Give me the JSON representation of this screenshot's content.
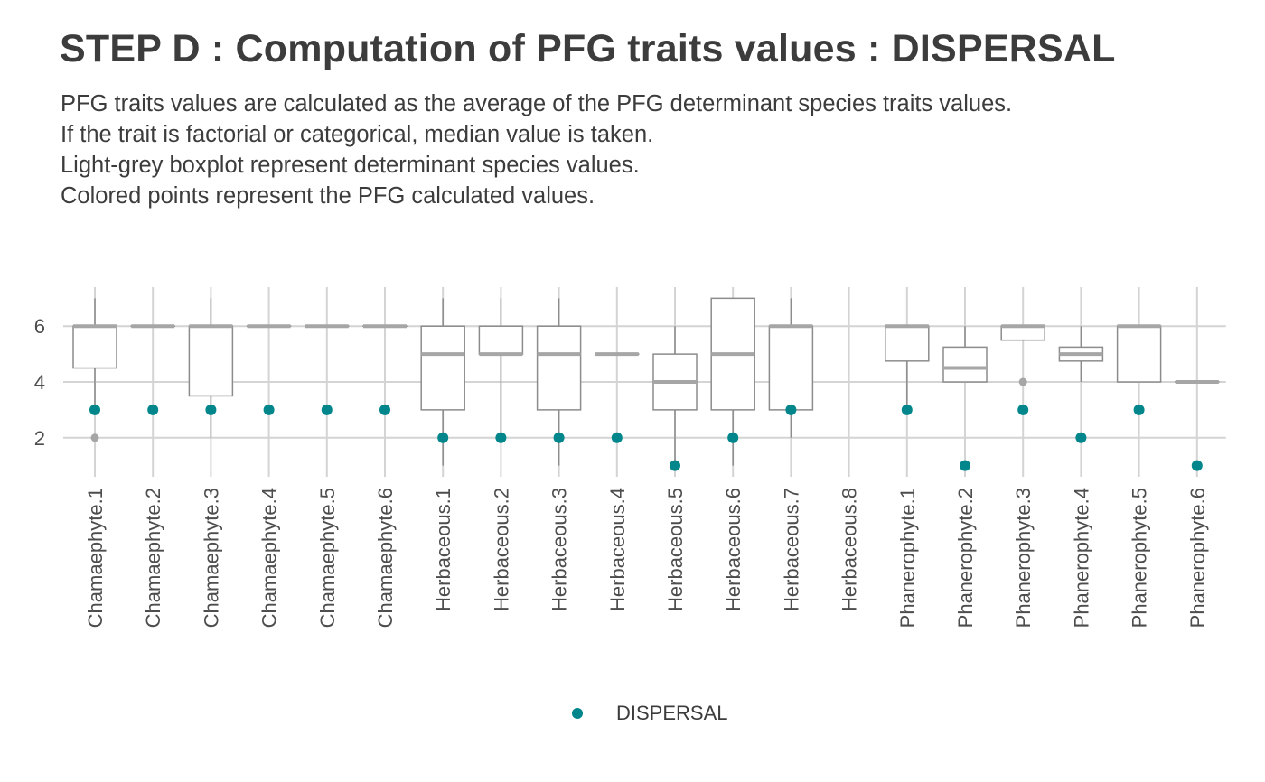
{
  "title": "STEP D : Computation of PFG traits values : DISPERSAL",
  "subtitle_lines": [
    "PFG traits values are calculated as the average of the PFG determinant species traits values.",
    "If the trait is factorial or categorical, median value is taken.",
    "Light-grey boxplot represent determinant species values.",
    "Colored points represent the PFG calculated values."
  ],
  "legend": {
    "label": "DISPERSAL",
    "color": "#00868b"
  },
  "colors": {
    "point": "#00868b",
    "box_stroke": "#8c8c8c",
    "median": "#a6a6a6",
    "grid": "#d4d4d4",
    "outlier": "#a6a6a6"
  },
  "chart_data": {
    "type": "boxplot",
    "categories": [
      "Chamaephyte.1",
      "Chamaephyte.2",
      "Chamaephyte.3",
      "Chamaephyte.4",
      "Chamaephyte.5",
      "Chamaephyte.6",
      "Herbaceous.1",
      "Herbaceous.2",
      "Herbaceous.3",
      "Herbaceous.4",
      "Herbaceous.5",
      "Herbaceous.6",
      "Herbaceous.7",
      "Herbaceous.8",
      "Phanerophyte.1",
      "Phanerophyte.2",
      "Phanerophyte.3",
      "Phanerophyte.4",
      "Phanerophyte.5",
      "Phanerophyte.6"
    ],
    "boxes": [
      {
        "low": 3,
        "q1": 4.5,
        "median": 6,
        "q3": 6,
        "high": 7,
        "outliers": [
          2
        ]
      },
      {
        "low": 6,
        "q1": 6,
        "median": 6,
        "q3": 6,
        "high": 6,
        "outliers": []
      },
      {
        "low": 2,
        "q1": 3.5,
        "median": 6,
        "q3": 6,
        "high": 7,
        "outliers": []
      },
      {
        "low": 6,
        "q1": 6,
        "median": 6,
        "q3": 6,
        "high": 6,
        "outliers": []
      },
      {
        "low": 6,
        "q1": 6,
        "median": 6,
        "q3": 6,
        "high": 6,
        "outliers": []
      },
      {
        "low": 6,
        "q1": 6,
        "median": 6,
        "q3": 6,
        "high": 6,
        "outliers": []
      },
      {
        "low": 1,
        "q1": 3,
        "median": 5,
        "q3": 6,
        "high": 7,
        "outliers": []
      },
      {
        "low": 2,
        "q1": 5,
        "median": 5,
        "q3": 6,
        "high": 7,
        "outliers": []
      },
      {
        "low": 1,
        "q1": 3,
        "median": 5,
        "q3": 6,
        "high": 7,
        "outliers": []
      },
      {
        "low": 5,
        "q1": 5,
        "median": 5,
        "q3": 5,
        "high": 5,
        "outliers": []
      },
      {
        "low": 1,
        "q1": 3,
        "median": 4,
        "q3": 5,
        "high": 6,
        "outliers": []
      },
      {
        "low": 1,
        "q1": 3,
        "median": 5,
        "q3": 7,
        "high": 7,
        "outliers": []
      },
      {
        "low": 2,
        "q1": 3,
        "median": 6,
        "q3": 6,
        "high": 7,
        "outliers": []
      },
      null,
      {
        "low": 3,
        "q1": 4.75,
        "median": 6,
        "q3": 6,
        "high": 6,
        "outliers": []
      },
      {
        "low": 4,
        "q1": 4,
        "median": 4.5,
        "q3": 5.25,
        "high": 6,
        "outliers": []
      },
      {
        "low": 5.5,
        "q1": 5.5,
        "median": 6,
        "q3": 6,
        "high": 6,
        "outliers": [
          4
        ]
      },
      {
        "low": 4,
        "q1": 4.75,
        "median": 5,
        "q3": 5.25,
        "high": 6,
        "outliers": []
      },
      {
        "low": 4,
        "q1": 4,
        "median": 6,
        "q3": 6,
        "high": 6,
        "outliers": []
      },
      {
        "low": 4,
        "q1": 4,
        "median": 4,
        "q3": 4,
        "high": 4,
        "outliers": []
      }
    ],
    "series": [
      {
        "name": "DISPERSAL",
        "values": [
          3,
          3,
          3,
          3,
          3,
          3,
          2,
          2,
          2,
          2,
          1,
          2,
          3,
          null,
          3,
          1,
          3,
          2,
          3,
          1
        ]
      }
    ],
    "y_ticks": [
      2,
      4,
      6
    ],
    "ylim": [
      0.6,
      7.4
    ],
    "grid": true,
    "legend_position": "bottom"
  }
}
